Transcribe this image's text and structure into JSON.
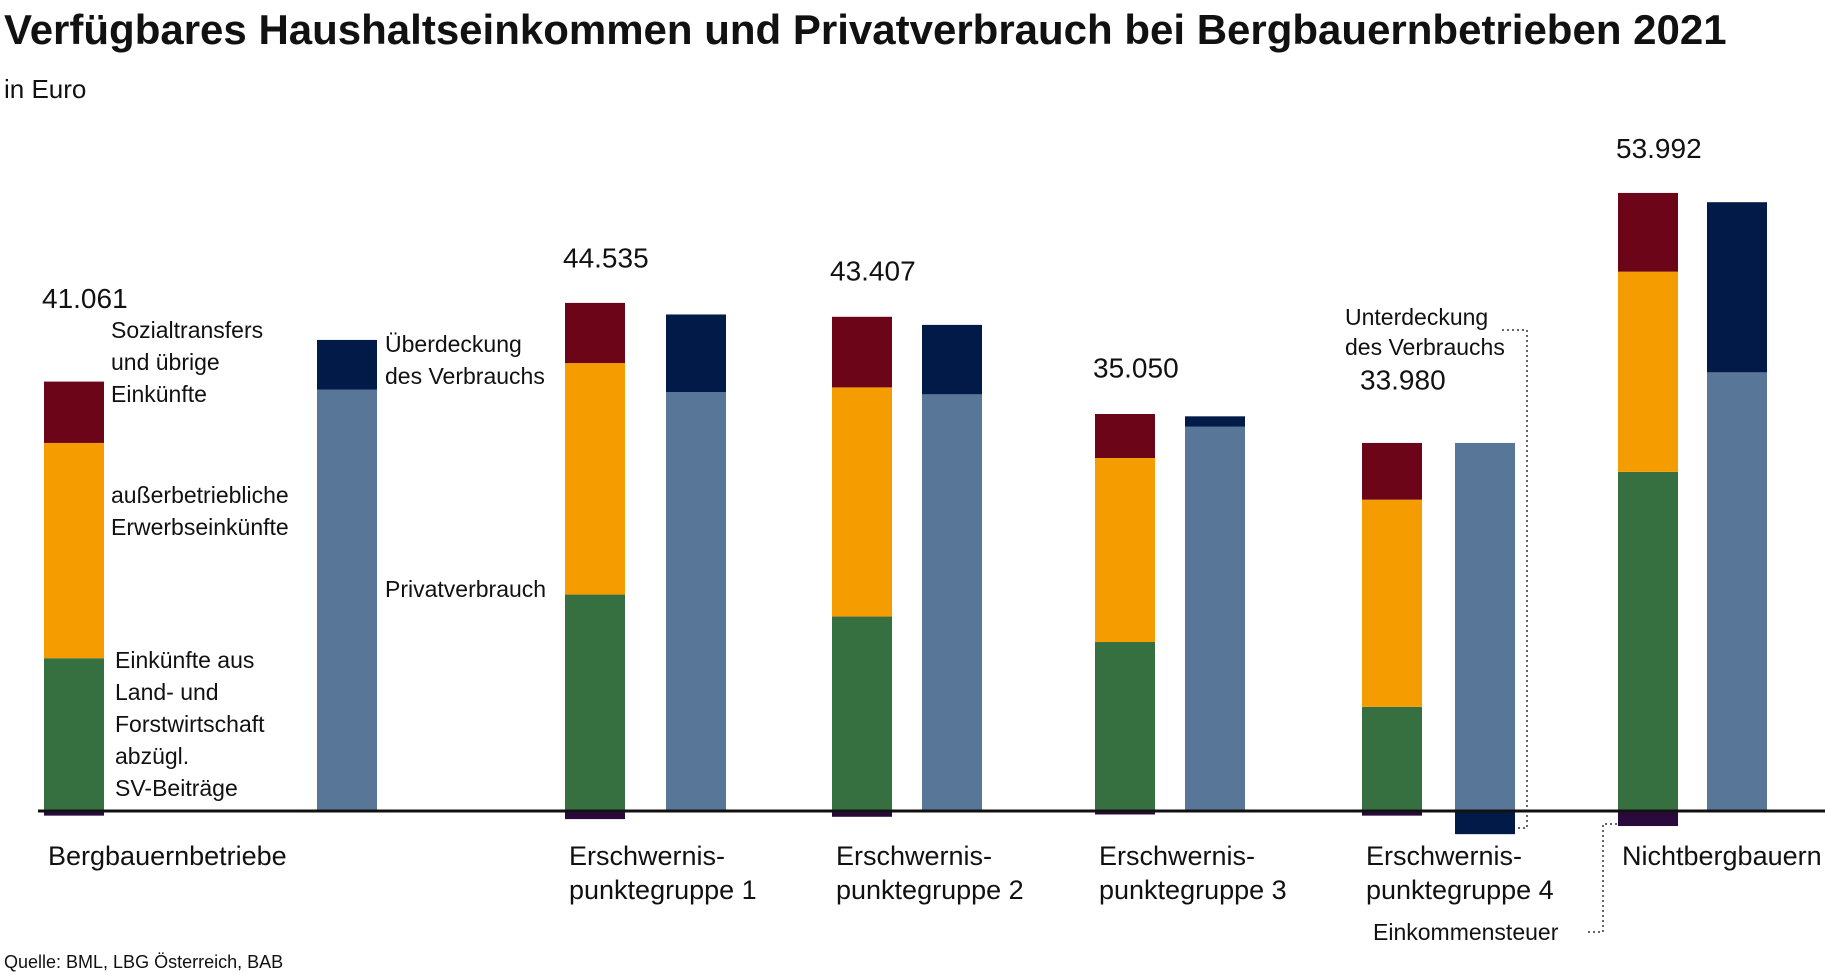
{
  "title": "Verfügbares Haushaltseinkommen und Privatverbrauch bei Bergbauernbetrieben 2021",
  "subtitle": "in Euro",
  "source": "Quelle: BML, LBG Österreich, BAB",
  "colors": {
    "land_forst": "#367040",
    "ausserbetrieblich": "#f59d00",
    "sozialtransfers": "#6b0517",
    "einkommensteuer": "#2a0a3c",
    "privatverbrauch": "#587697",
    "deckung": "#021a47",
    "baseline": "#111111"
  },
  "annotations": {
    "sozial": [
      "Sozialtransfers",
      "und übrige",
      "Einkünfte"
    ],
    "ausser": [
      "außerbetriebliche",
      "Erwerbseinkünfte"
    ],
    "land": [
      "Einkünfte aus",
      "Land- und",
      "Forstwirtschaft",
      "abzügl.",
      "SV-Beiträge"
    ],
    "ueber": [
      "Überdeckung",
      "des Verbrauchs"
    ],
    "privat": [
      "Privatverbrauch"
    ],
    "unter": [
      "Unterdeckung",
      "des Verbrauchs"
    ],
    "steuer": [
      "Einkommensteuer"
    ]
  },
  "chart_data": {
    "type": "bar",
    "stacked": true,
    "unit": "Euro",
    "categories": [
      [
        "Bergbauernbetriebe"
      ],
      [
        "Erschwernis-",
        "punktegruppe 1"
      ],
      [
        "Erschwernis-",
        "punktegruppe 2"
      ],
      [
        "Erschwernis-",
        "punktegruppe 3"
      ],
      [
        "Erschwernis-",
        "punktegruppe 4"
      ],
      [
        "Nichtbergbauern"
      ]
    ],
    "totals_label": [
      "41.061",
      "44.535",
      "43.407",
      "35.050",
      "33.980",
      "53.992"
    ],
    "totals": [
      41061,
      44535,
      43407,
      35050,
      33980,
      53992
    ],
    "income": {
      "land_forst": [
        13200,
        18700,
        16800,
        14600,
        9000,
        29300
      ],
      "ausserbetrieblich": [
        18600,
        20000,
        19800,
        15900,
        17900,
        17300
      ],
      "sozialtransfers": [
        5300,
        5200,
        6100,
        3800,
        4900,
        6800
      ],
      "einkommensteuer": [
        -400,
        -700,
        -500,
        -300,
        -400,
        -1300
      ]
    },
    "consumption": {
      "privatverbrauch": [
        36400,
        36200,
        36000,
        33200,
        31800,
        37900
      ],
      "deckung": [
        4300,
        6700,
        6000,
        900,
        -2000,
        14700
      ]
    },
    "ylim": [
      -3000,
      54000
    ]
  }
}
